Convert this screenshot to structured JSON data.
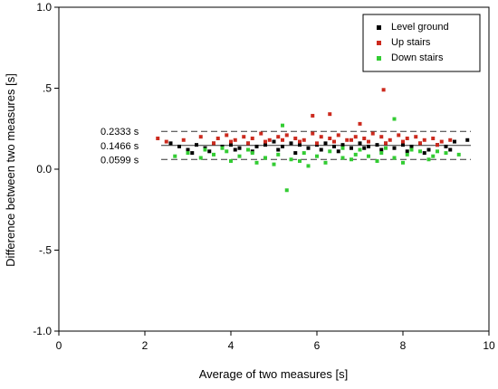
{
  "chart_data": {
    "type": "scatter",
    "xlabel": "Average of two measures [s]",
    "ylabel": "Difference between two measures [s]",
    "xlim": [
      0,
      10
    ],
    "ylim": [
      -1.0,
      1.0
    ],
    "x_ticks": [
      0,
      2,
      4,
      6,
      8,
      10
    ],
    "x_tick_labels": [
      "0",
      "2",
      "4",
      "6",
      "8",
      "10"
    ],
    "y_ticks": [
      1.0,
      0.5,
      0.0,
      -0.5,
      -1.0
    ],
    "y_tick_labels": [
      "1.0",
      ".5",
      "0.0",
      "-.5",
      "-1.0"
    ],
    "grid": false,
    "legend_position": "top-right",
    "reference_lines": [
      {
        "value": 0.2333,
        "label": "0.2333 s",
        "style": "dashed"
      },
      {
        "value": 0.1466,
        "label": "0.1466 s",
        "style": "solid"
      },
      {
        "value": 0.0599,
        "label": "0.0599 s",
        "style": "dashed"
      }
    ],
    "series": [
      {
        "name": "Level ground",
        "color": "#000000",
        "x": [
          2.6,
          2.8,
          3.0,
          3.2,
          3.4,
          3.6,
          3.8,
          4.0,
          4.2,
          4.4,
          4.6,
          4.8,
          5.0,
          5.2,
          5.4,
          5.6,
          5.8,
          6.0,
          6.2,
          6.4,
          6.6,
          6.8,
          7.0,
          7.2,
          7.4,
          7.6,
          7.8,
          8.0,
          8.2,
          8.4,
          8.6,
          8.8,
          9.0,
          9.2,
          9.5,
          3.1,
          3.5,
          4.1,
          4.5,
          5.1,
          5.5,
          6.1,
          6.5,
          7.1,
          7.5,
          8.1,
          8.5,
          9.1
        ],
        "y": [
          0.16,
          0.14,
          0.12,
          0.15,
          0.13,
          0.16,
          0.14,
          0.15,
          0.13,
          0.16,
          0.14,
          0.15,
          0.17,
          0.14,
          0.16,
          0.15,
          0.13,
          0.15,
          0.16,
          0.14,
          0.15,
          0.13,
          0.16,
          0.14,
          0.15,
          0.16,
          0.13,
          0.15,
          0.14,
          0.16,
          0.12,
          0.15,
          0.14,
          0.17,
          0.18,
          0.1,
          0.11,
          0.12,
          0.11,
          0.12,
          0.1,
          0.12,
          0.11,
          0.13,
          0.12,
          0.11,
          0.1,
          0.12
        ]
      },
      {
        "name": "Up stairs",
        "color": "#cc2a1e",
        "x": [
          2.3,
          2.5,
          2.9,
          3.3,
          3.7,
          3.9,
          4.1,
          4.3,
          4.5,
          4.7,
          4.9,
          5.1,
          5.3,
          5.5,
          5.7,
          5.9,
          6.1,
          6.3,
          6.5,
          6.7,
          6.9,
          7.1,
          7.3,
          7.5,
          7.7,
          7.9,
          8.1,
          8.3,
          8.5,
          8.7,
          8.9,
          9.1,
          5.9,
          6.3,
          7.0,
          7.55,
          3.6,
          4.0,
          4.4,
          4.8,
          5.2,
          5.6,
          6.0,
          6.4,
          6.8,
          7.2,
          7.6,
          8.0,
          8.4,
          8.8
        ],
        "y": [
          0.19,
          0.17,
          0.18,
          0.2,
          0.19,
          0.21,
          0.18,
          0.2,
          0.19,
          0.22,
          0.18,
          0.2,
          0.21,
          0.19,
          0.18,
          0.22,
          0.2,
          0.19,
          0.21,
          0.18,
          0.2,
          0.19,
          0.22,
          0.2,
          0.18,
          0.21,
          0.19,
          0.2,
          0.18,
          0.19,
          0.17,
          0.18,
          0.33,
          0.34,
          0.28,
          0.49,
          0.16,
          0.17,
          0.16,
          0.17,
          0.18,
          0.17,
          0.16,
          0.17,
          0.18,
          0.17,
          0.16,
          0.17,
          0.16,
          0.15
        ]
      },
      {
        "name": "Down stairs",
        "color": "#33cc33",
        "x": [
          2.7,
          3.0,
          3.3,
          3.6,
          3.9,
          4.2,
          4.5,
          4.8,
          5.1,
          5.4,
          5.7,
          6.0,
          6.3,
          6.6,
          6.9,
          7.2,
          7.5,
          7.8,
          8.1,
          8.4,
          8.7,
          9.0,
          9.3,
          5.3,
          5.2,
          5.8,
          7.8,
          4.0,
          4.6,
          5.0,
          5.6,
          6.2,
          6.8,
          7.4,
          8.0,
          8.6,
          3.4,
          3.8,
          4.4,
          6.6,
          7.0,
          7.6,
          8.2,
          8.8
        ],
        "y": [
          0.08,
          0.1,
          0.07,
          0.09,
          0.11,
          0.08,
          0.1,
          0.07,
          0.09,
          0.06,
          0.1,
          0.08,
          0.11,
          0.07,
          0.09,
          0.08,
          0.1,
          0.07,
          0.09,
          0.11,
          0.08,
          0.1,
          0.09,
          -0.13,
          0.27,
          0.02,
          0.31,
          0.05,
          0.04,
          0.03,
          0.05,
          0.04,
          0.06,
          0.05,
          0.04,
          0.06,
          0.12,
          0.13,
          0.12,
          0.13,
          0.12,
          0.13,
          0.12,
          0.11
        ]
      }
    ]
  }
}
